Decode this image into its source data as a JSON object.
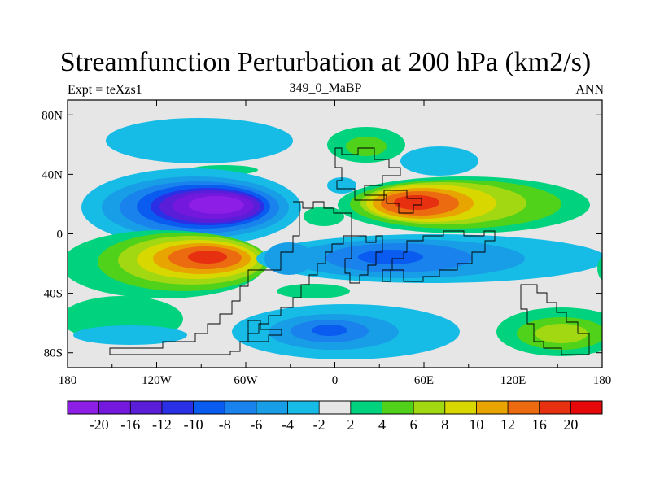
{
  "chart_data": {
    "type": "contour_map",
    "title": "Streamfunction Perturbation at 200 hPa (km2/s)",
    "left_label": "Expt = teXzs1",
    "center_label": "349_0_MaBP",
    "right_label": "ANN",
    "x_ticks": [
      "180",
      "120W",
      "60W",
      "0",
      "60E",
      "120E",
      "180"
    ],
    "x_tick_values": [
      -180,
      -120,
      -60,
      0,
      60,
      120,
      180
    ],
    "y_ticks": [
      "80N",
      "40N",
      "0",
      "40S",
      "80S"
    ],
    "y_tick_values": [
      80,
      40,
      0,
      -40,
      -80
    ],
    "xlim": [
      -180,
      180
    ],
    "ylim": [
      -90,
      90
    ],
    "colorbar_levels": [
      "-20",
      "-16",
      "-12",
      "-10",
      "-8",
      "-6",
      "-4",
      "-2",
      "2",
      "4",
      "6",
      "8",
      "10",
      "12",
      "16",
      "20"
    ],
    "colorbar_colors": [
      "#8c1ee6",
      "#7418de",
      "#5a1ed8",
      "#2a30e6",
      "#0a5cf0",
      "#1a82ec",
      "#189ee6",
      "#16bce6",
      "#e6e6e6",
      "#00d27e",
      "#50d21a",
      "#a2d812",
      "#d8d800",
      "#e8a400",
      "#ec6a10",
      "#e63010",
      "#e60808"
    ],
    "features": [
      {
        "name": "positive-anomaly-east-pacific-south",
        "lon": -80,
        "lat": -17,
        "peak": 18
      },
      {
        "name": "negative-anomaly-east-pacific-north",
        "lon": -85,
        "lat": 15,
        "peak": -20
      },
      {
        "name": "positive-anomaly-middle-east",
        "lon": 55,
        "lat": 20,
        "peak": 16
      },
      {
        "name": "negative-anomaly-indian-ocean",
        "lon": 40,
        "lat": -17,
        "peak": -8
      },
      {
        "name": "negative-anomaly-south-atlantic",
        "lon": -5,
        "lat": -67,
        "peak": -10
      },
      {
        "name": "positive-anomaly-south-pacific",
        "lon": 155,
        "lat": -65,
        "peak": 6
      }
    ]
  }
}
